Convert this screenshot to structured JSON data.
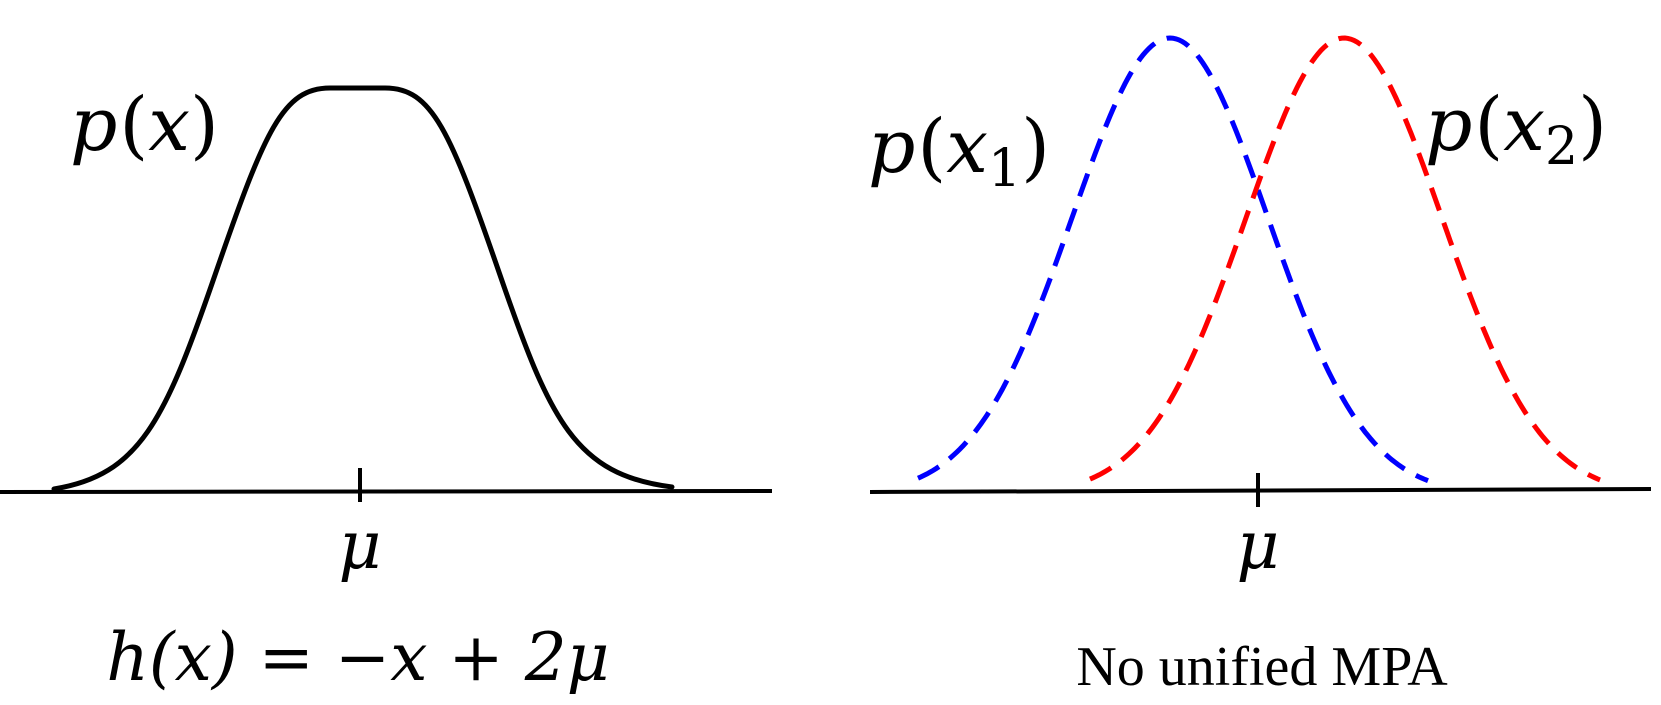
{
  "left_panel": {
    "curve_label": {
      "fn": "p",
      "arg": "x"
    },
    "tick_label": "μ",
    "equation": "h(x) = −x + 2μ"
  },
  "right_panel": {
    "curve1_label": {
      "fn": "p",
      "arg": "x",
      "subscript": "1"
    },
    "curve2_label": {
      "fn": "p",
      "arg": "x",
      "subscript": "2"
    },
    "tick_label": "μ",
    "caption": "No unified MPA"
  },
  "colors": {
    "axis": "#000000",
    "curve_main": "#000000",
    "curve1": "#0000ff",
    "curve2": "#ff0000"
  }
}
